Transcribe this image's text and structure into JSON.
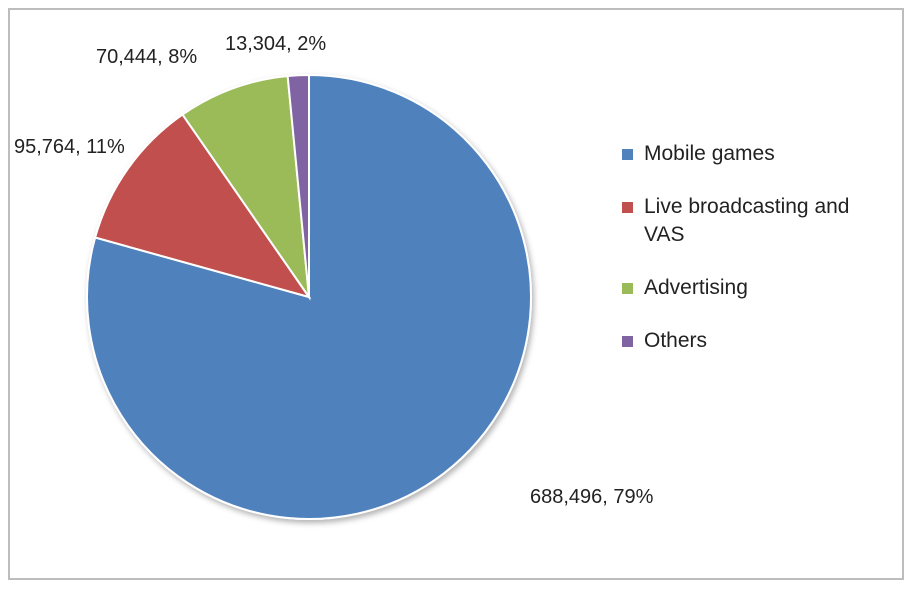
{
  "chart_data": {
    "type": "pie",
    "categories": [
      "Mobile games",
      "Live broadcasting and VAS",
      "Advertising",
      "Others"
    ],
    "values": [
      688496,
      95764,
      70444,
      13304
    ],
    "value_labels": [
      "688,496, 79%",
      "95,764, 11%",
      "70,444, 8%",
      "13,304, 2%"
    ],
    "colors": [
      "#4f81bd",
      "#c0504d",
      "#9bbb59",
      "#8064a2"
    ],
    "legend": "right"
  }
}
